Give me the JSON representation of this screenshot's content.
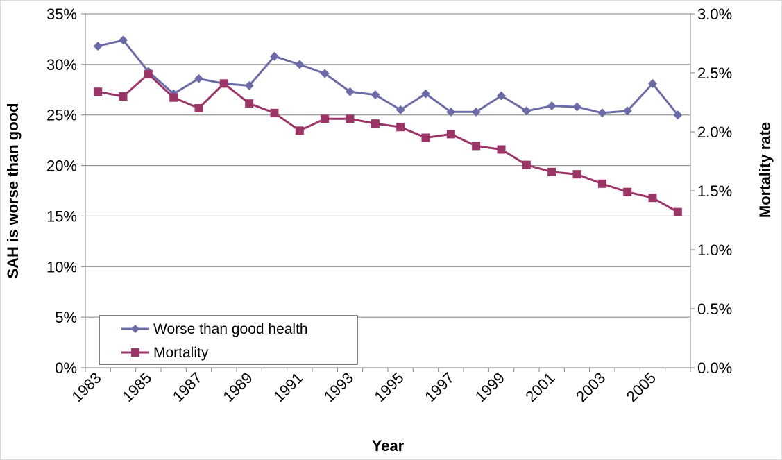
{
  "chart_data": {
    "type": "line",
    "xlabel": "Year",
    "ylabel": "SAH is worse than good",
    "y2label": "Mortality rate",
    "x": [
      1983,
      1984,
      1985,
      1986,
      1987,
      1988,
      1989,
      1990,
      1991,
      1992,
      1993,
      1994,
      1995,
      1996,
      1997,
      1998,
      1999,
      2000,
      2001,
      2002,
      2003,
      2004,
      2005,
      2006
    ],
    "x_tick_labels": [
      "1983",
      "1985",
      "1987",
      "1989",
      "1991",
      "1993",
      "1995",
      "1997",
      "1999",
      "2001",
      "2003",
      "2005"
    ],
    "ylim": [
      0,
      35
    ],
    "y_ticks": [
      0,
      5,
      10,
      15,
      20,
      25,
      30,
      35
    ],
    "y_tick_labels": [
      "0%",
      "5%",
      "10%",
      "15%",
      "20%",
      "25%",
      "30%",
      "35%"
    ],
    "y2lim": [
      0,
      3.0
    ],
    "y2_ticks": [
      0,
      0.5,
      1.0,
      1.5,
      2.0,
      2.5,
      3.0
    ],
    "y2_tick_labels": [
      "0.0%",
      "0.5%",
      "1.0%",
      "1.5%",
      "2.0%",
      "2.5%",
      "3.0%"
    ],
    "grid": "horizontal",
    "legend_position": "bottom-left",
    "series": [
      {
        "name": "Worse than good health",
        "axis": "left",
        "marker": "diamond",
        "color": "#6B6BA8",
        "values": [
          31.8,
          32.4,
          29.3,
          27.1,
          28.6,
          28.1,
          27.9,
          30.8,
          30.0,
          29.1,
          27.3,
          27.0,
          25.5,
          27.1,
          25.3,
          25.3,
          26.9,
          25.4,
          25.9,
          25.8,
          25.2,
          25.4,
          28.1,
          25.0
        ]
      },
      {
        "name": "Mortality",
        "axis": "right",
        "marker": "square",
        "color": "#9B3568",
        "values": [
          2.34,
          2.3,
          2.49,
          2.29,
          2.2,
          2.41,
          2.24,
          2.16,
          2.01,
          2.11,
          2.11,
          2.07,
          2.04,
          1.95,
          1.98,
          1.88,
          1.85,
          1.72,
          1.66,
          1.64,
          1.56,
          1.49,
          1.44,
          1.32
        ]
      }
    ]
  }
}
